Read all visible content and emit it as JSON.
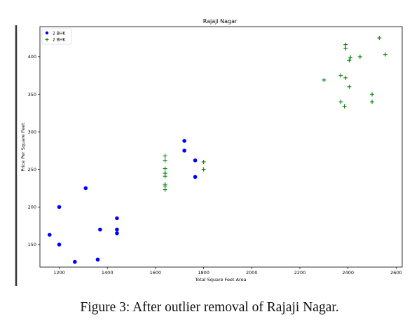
{
  "caption": "Figure 3: After outlier removal of Rajaji Nagar.",
  "chart_data": {
    "type": "scatter",
    "title": "Rajaji Nagar",
    "xlabel": "Total Square Feet Area",
    "ylabel": "Price Per Square Feet",
    "xlim": [
      1120,
      2625
    ],
    "ylim": [
      120,
      440
    ],
    "xticks": [
      1200,
      1400,
      1600,
      1800,
      2000,
      2200,
      2400,
      2600
    ],
    "yticks": [
      150,
      200,
      250,
      300,
      350,
      400
    ],
    "legend_position": "top-left",
    "series": [
      {
        "name": "2 BHK",
        "marker": "circle",
        "color": "#0000ff",
        "x": [
          1160,
          1200,
          1200,
          1265,
          1310,
          1360,
          1370,
          1440,
          1440,
          1440,
          1720,
          1720,
          1765,
          1765
        ],
        "y": [
          163,
          200,
          150,
          127,
          225,
          130,
          170,
          185,
          170,
          165,
          288,
          275,
          262,
          240
        ]
      },
      {
        "name": "2 BHK",
        "marker": "plus",
        "color": "#008000",
        "x": [
          1640,
          1640,
          1640,
          1640,
          1640,
          1640,
          1640,
          1640,
          1800,
          1800,
          2300,
          2370,
          2370,
          2385,
          2390,
          2390,
          2390,
          2405,
          2405,
          2410,
          2450,
          2500,
          2500,
          2530,
          2555
        ],
        "y": [
          268,
          262,
          251,
          245,
          241,
          230,
          228,
          223,
          260,
          250,
          369,
          375,
          340,
          334,
          372,
          416,
          411,
          360,
          395,
          399,
          400,
          350,
          340,
          425,
          403
        ]
      }
    ]
  }
}
